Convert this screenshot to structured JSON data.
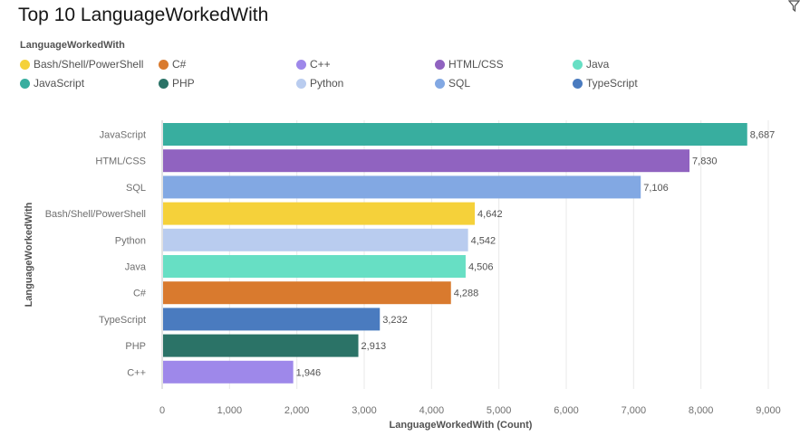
{
  "chart_data": {
    "type": "bar",
    "orientation": "horizontal",
    "title": "Top 10 LanguageWorkedWith",
    "legend_title": "LanguageWorkedWith",
    "legend": [
      {
        "label": "Bash/Shell/PowerShell",
        "color": "#f5d13a"
      },
      {
        "label": "C#",
        "color": "#d97a2e"
      },
      {
        "label": "C++",
        "color": "#9e88ea"
      },
      {
        "label": "HTML/CSS",
        "color": "#9063c0"
      },
      {
        "label": "Java",
        "color": "#67dfc4"
      },
      {
        "label": "JavaScript",
        "color": "#38ae9f"
      },
      {
        "label": "PHP",
        "color": "#2b7367"
      },
      {
        "label": "Python",
        "color": "#b9ccef"
      },
      {
        "label": "SQL",
        "color": "#82a8e3"
      },
      {
        "label": "TypeScript",
        "color": "#4a7bbf"
      }
    ],
    "categories": [
      "JavaScript",
      "HTML/CSS",
      "SQL",
      "Bash/Shell/PowerShell",
      "Python",
      "Java",
      "C#",
      "TypeScript",
      "PHP",
      "C++"
    ],
    "values": [
      8687,
      7830,
      7106,
      4642,
      4542,
      4506,
      4288,
      3232,
      2913,
      1946
    ],
    "value_labels": [
      "8,687",
      "7,830",
      "7,106",
      "4,642",
      "4,542",
      "4,506",
      "4,288",
      "3,232",
      "2,913",
      "1,946"
    ],
    "colors": [
      "#38ae9f",
      "#9063c0",
      "#82a8e3",
      "#f5d13a",
      "#b9ccef",
      "#67dfc4",
      "#d97a2e",
      "#4a7bbf",
      "#2b7367",
      "#9e88ea"
    ],
    "xlabel": "LanguageWorkedWith (Count)",
    "ylabel": "LanguageWorkedWith",
    "xlim": [
      0,
      9000
    ],
    "xticks": [
      0,
      1000,
      2000,
      3000,
      4000,
      5000,
      6000,
      7000,
      8000,
      9000
    ],
    "xtick_labels": [
      "0",
      "1,000",
      "2,000",
      "3,000",
      "4,000",
      "5,000",
      "6,000",
      "7,000",
      "8,000",
      "9,000"
    ],
    "grid": true
  },
  "toolbar": {
    "filter_icon": "filter-icon"
  }
}
